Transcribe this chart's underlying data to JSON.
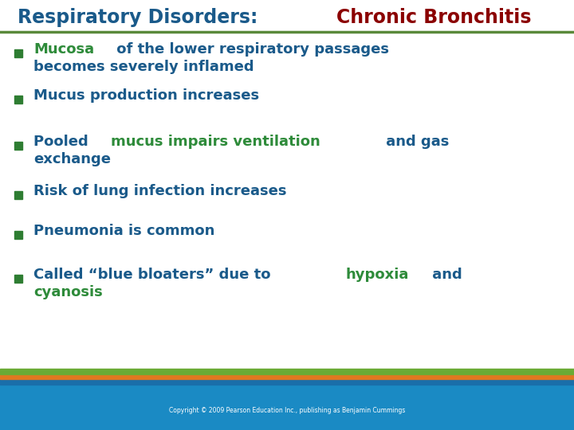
{
  "title_part1": "Respiratory Disorders: ",
  "title_part2": "Chronic Bronchitis",
  "title_color1": "#1a5a8a",
  "title_color2": "#8b0000",
  "bg_color": "#ffffff",
  "separator_color": "#5a8a3a",
  "bullet_color": "#2e7d32",
  "text_dark": "#1a5a8a",
  "text_green": "#2e8b3a",
  "footer_bg": "#1a8ac4",
  "footer_text": "Copyright © 2009 Pearson Education Inc., publishing as Benjamin Cummings",
  "footer_text_color": "#ffffff",
  "stripe1_color": "#6aaa35",
  "stripe2_color": "#e07820",
  "stripe3_color": "#1a6eaa",
  "fontsize": 13,
  "title_fontsize": 17,
  "bullet_items": [
    {
      "lines": [
        [
          {
            "text": "Mucosa",
            "color": "#2e8b3a"
          },
          {
            "text": " of the lower respiratory passages",
            "color": "#1a5a8a"
          }
        ],
        [
          {
            "text": "becomes severely inflamed",
            "color": "#1a5a8a"
          }
        ]
      ]
    },
    {
      "lines": [
        [
          {
            "text": "Mucus production increases",
            "color": "#1a5a8a"
          }
        ]
      ]
    },
    {
      "lines": [
        [
          {
            "text": "Pooled ",
            "color": "#1a5a8a"
          },
          {
            "text": "mucus impairs ventilation",
            "color": "#2e8b3a"
          },
          {
            "text": " and gas",
            "color": "#1a5a8a"
          }
        ],
        [
          {
            "text": "exchange",
            "color": "#1a5a8a"
          }
        ]
      ]
    },
    {
      "lines": [
        [
          {
            "text": "Risk of lung infection increases",
            "color": "#1a5a8a"
          }
        ]
      ]
    },
    {
      "lines": [
        [
          {
            "text": "Pneumonia is common",
            "color": "#1a5a8a"
          }
        ]
      ]
    },
    {
      "lines": [
        [
          {
            "text": "Called “blue bloaters” due to ",
            "color": "#1a5a8a"
          },
          {
            "text": "hypoxia",
            "color": "#2e8b3a"
          },
          {
            "text": " and",
            "color": "#1a5a8a"
          }
        ],
        [
          {
            "text": "cyanosis",
            "color": "#2e8b3a"
          }
        ]
      ]
    }
  ]
}
